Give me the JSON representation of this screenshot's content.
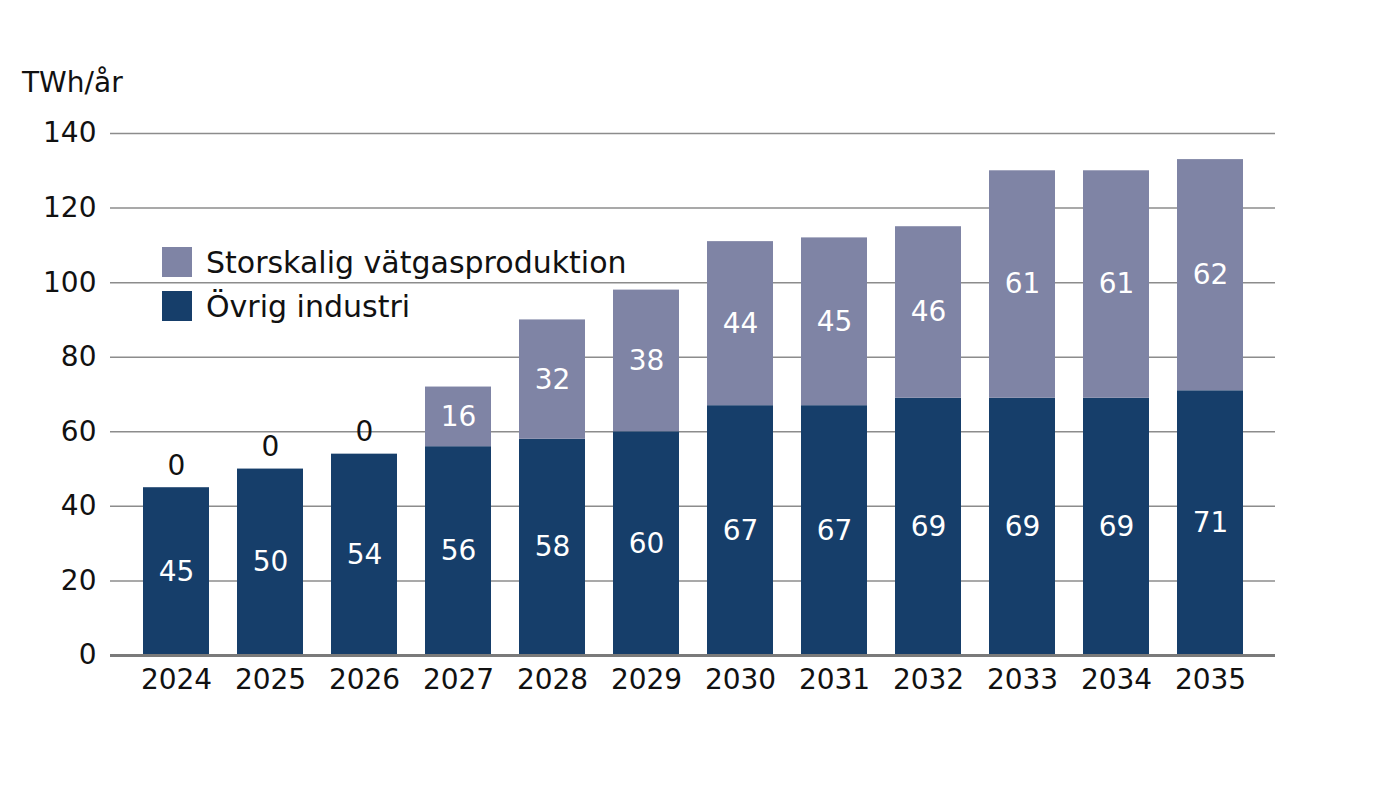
{
  "chart_data": {
    "type": "bar",
    "y_label": "TWh/år",
    "categories": [
      "2024",
      "2025",
      "2026",
      "2027",
      "2028",
      "2029",
      "2030",
      "2031",
      "2032",
      "2033",
      "2034",
      "2035"
    ],
    "series": [
      {
        "name": "Övrig industri",
        "color": "#163e6a",
        "values": [
          45,
          50,
          54,
          56,
          58,
          60,
          67,
          67,
          69,
          69,
          69,
          71
        ]
      },
      {
        "name": "Storskalig vätgasproduktion",
        "color": "#7f84a5",
        "values": [
          0,
          0,
          0,
          16,
          32,
          38,
          44,
          45,
          46,
          61,
          61,
          62
        ]
      }
    ],
    "stacked": true,
    "data_labels": true,
    "ylim": [
      0,
      140
    ],
    "yticks": [
      0,
      20,
      40,
      60,
      80,
      100,
      120,
      140
    ],
    "grid": true,
    "legend": "upper left"
  }
}
